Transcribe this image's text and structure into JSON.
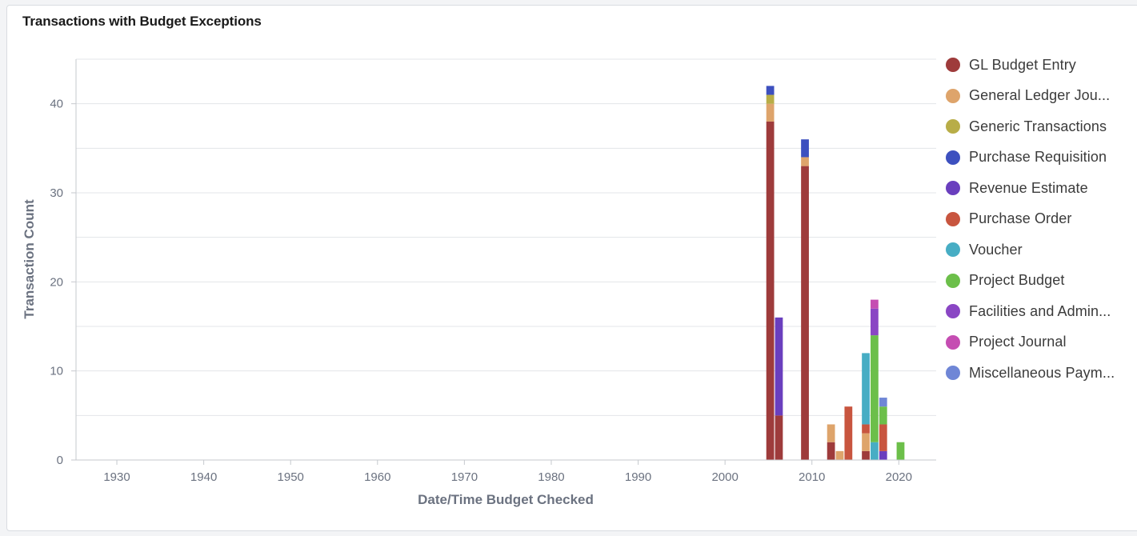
{
  "card": {
    "title": "Transactions with Budget Exceptions"
  },
  "chart_data": {
    "type": "bar",
    "stacked": true,
    "title": "Transactions with Budget Exceptions",
    "xlabel": "Date/Time Budget Checked",
    "ylabel": "Transaction Count",
    "xlim": [
      1925.3,
      2024.3
    ],
    "ylim": [
      0,
      45
    ],
    "x_ticks": [
      1930,
      1940,
      1950,
      1960,
      1970,
      1980,
      1990,
      2000,
      2010,
      2020
    ],
    "y_ticks": [
      0,
      10,
      20,
      30,
      40
    ],
    "grid": true,
    "legend_position": "right",
    "bar_width_years": 0.9,
    "x": [
      2005.2,
      2006.2,
      2009.2,
      2012.2,
      2013.2,
      2014.2,
      2016.2,
      2017.2,
      2018.2,
      2020.2
    ],
    "series": [
      {
        "name": "GL Budget Entry",
        "color": "#9e3b3b",
        "values": [
          38,
          5,
          33,
          2,
          0,
          0,
          1,
          0,
          0,
          0
        ]
      },
      {
        "name": "General Ledger Jou...",
        "color": "#dea46b",
        "values": [
          2,
          0,
          1,
          2,
          1,
          0,
          2,
          0,
          0,
          0
        ]
      },
      {
        "name": "Generic Transactions",
        "color": "#b8ad47",
        "values": [
          1,
          0,
          0,
          0,
          0,
          0,
          0,
          0,
          0,
          0
        ]
      },
      {
        "name": "Purchase Requisition",
        "color": "#3d50bf",
        "values": [
          1,
          0,
          2,
          0,
          0,
          0,
          0,
          0,
          0,
          0
        ]
      },
      {
        "name": "Revenue Estimate",
        "color": "#6a3fbe",
        "values": [
          0,
          11,
          0,
          0,
          0,
          0,
          0,
          0,
          1,
          0
        ]
      },
      {
        "name": "Purchase Order",
        "color": "#c8553f",
        "values": [
          0,
          0,
          0,
          0,
          0,
          6,
          1,
          0,
          3,
          0
        ]
      },
      {
        "name": "Voucher",
        "color": "#47adc4",
        "values": [
          0,
          0,
          0,
          0,
          0,
          0,
          8,
          2,
          0,
          0
        ]
      },
      {
        "name": "Project Budget",
        "color": "#6cbf4a",
        "values": [
          0,
          0,
          0,
          0,
          0,
          0,
          0,
          12,
          2,
          2
        ]
      },
      {
        "name": "Facilities and Admin...",
        "color": "#8a46c4",
        "values": [
          0,
          0,
          0,
          0,
          0,
          0,
          0,
          3,
          0,
          0
        ]
      },
      {
        "name": "Project Journal",
        "color": "#c54db2",
        "values": [
          0,
          0,
          0,
          0,
          0,
          0,
          0,
          1,
          0,
          0
        ]
      },
      {
        "name": "Miscellaneous Paym...",
        "color": "#6f86d6",
        "values": [
          0,
          0,
          0,
          0,
          0,
          0,
          0,
          0,
          1,
          0
        ]
      }
    ]
  }
}
